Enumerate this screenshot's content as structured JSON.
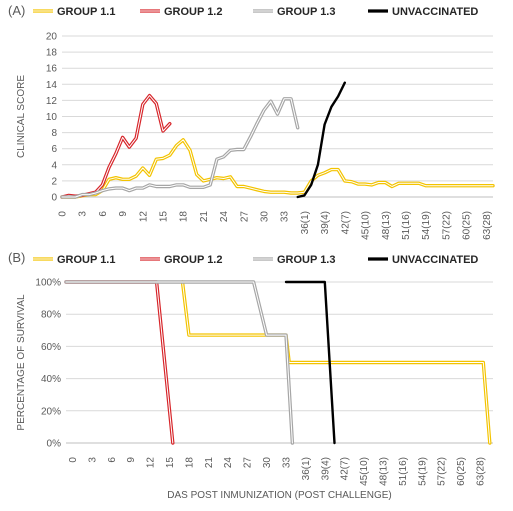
{
  "chart_data": [
    {
      "type": "line",
      "panel_label": "(A)",
      "legend": [
        "GROUP 1.1",
        "GROUP 1.2",
        "GROUP 1.3",
        "UNVACCINATED"
      ],
      "legend_position": "top",
      "colors": [
        "#F3C300",
        "#D7262B",
        "#A6A6A6",
        "#000000"
      ],
      "ylabel": "CLINICAL SCORE",
      "xlabel": "",
      "ylim": [
        0,
        20
      ],
      "yticks": [
        0,
        2,
        4,
        6,
        8,
        10,
        12,
        14,
        16,
        18,
        20
      ],
      "xlim": [
        0,
        64
      ],
      "xtick_values": [
        0,
        3,
        6,
        9,
        12,
        15,
        18,
        21,
        24,
        27,
        30,
        33,
        36,
        39,
        42,
        45,
        48,
        51,
        54,
        57,
        60,
        63
      ],
      "xtick_labels": [
        "0",
        "3",
        "6",
        "9",
        "12",
        "15",
        "18",
        "21",
        "24",
        "27",
        "30",
        "33",
        "36(1)",
        "39(4)",
        "42(7)",
        "45(10)",
        "48(13)",
        "51(16)",
        "54(19)",
        "57(22)",
        "60(25)",
        "63(28)"
      ],
      "grid": true,
      "series": [
        {
          "name": "GROUP 1.1",
          "x": [
            0,
            2,
            4,
            5,
            6,
            7,
            8,
            9,
            10,
            11,
            12,
            13,
            14,
            15,
            16,
            17,
            18,
            19,
            20,
            21,
            22,
            23,
            24,
            25,
            26,
            27,
            28,
            29,
            30,
            31,
            32,
            33,
            34,
            35,
            36,
            37,
            38,
            39,
            40,
            41,
            42,
            43,
            44,
            45,
            46,
            47,
            48,
            49,
            50,
            51,
            52,
            53,
            54,
            55,
            56,
            57,
            58,
            59,
            60,
            61,
            62,
            63,
            64
          ],
          "y": [
            0,
            0,
            0.3,
            0.3,
            0.8,
            2.2,
            2.4,
            2.2,
            2.2,
            2.6,
            3.6,
            2.7,
            4.7,
            4.8,
            5.2,
            6.4,
            7.1,
            5.8,
            2.8,
            2.0,
            2.2,
            2.4,
            2.3,
            2.5,
            1.3,
            1.3,
            1.1,
            0.9,
            0.7,
            0.6,
            0.6,
            0.6,
            0.5,
            0.5,
            0.6,
            2.0,
            2.7,
            3.0,
            3.4,
            3.4,
            2.0,
            1.9,
            1.6,
            1.6,
            1.5,
            1.8,
            1.8,
            1.3,
            1.7,
            1.7,
            1.7,
            1.7,
            1.4,
            1.4,
            1.4,
            1.4,
            1.4,
            1.4,
            1.4,
            1.4,
            1.4,
            1.4,
            1.4
          ]
        },
        {
          "name": "GROUP 1.2",
          "x": [
            0,
            1,
            2,
            3,
            4,
            5,
            6,
            7,
            8,
            9,
            10,
            11,
            12,
            13,
            14,
            15,
            16
          ],
          "y": [
            0,
            0.2,
            0.1,
            0.2,
            0.4,
            0.6,
            1.5,
            3.7,
            5.4,
            7.4,
            6.2,
            7.3,
            11.5,
            12.6,
            11.6,
            8.2,
            9.1
          ]
        },
        {
          "name": "GROUP 1.3",
          "x": [
            0,
            2,
            3,
            4,
            5,
            6,
            7,
            8,
            9,
            10,
            11,
            12,
            13,
            14,
            15,
            16,
            17,
            18,
            19,
            20,
            21,
            22,
            23,
            24,
            25,
            26,
            27,
            28,
            29,
            30,
            31,
            32,
            33,
            34,
            35
          ],
          "y": [
            0,
            0,
            0.3,
            0.3,
            0.5,
            0.8,
            1.0,
            1.1,
            1.1,
            0.8,
            1.1,
            1.1,
            1.5,
            1.3,
            1.3,
            1.3,
            1.5,
            1.5,
            1.2,
            1.2,
            1.2,
            1.5,
            4.7,
            5.0,
            5.8,
            5.9,
            5.9,
            7.5,
            9.2,
            10.8,
            11.9,
            10.3,
            12.2,
            12.2,
            8.6
          ]
        },
        {
          "name": "UNVACCINATED",
          "x": [
            35,
            36,
            37,
            38,
            39,
            40,
            41,
            42
          ],
          "y": [
            0,
            0.2,
            1.5,
            4.0,
            9.0,
            11.2,
            12.5,
            14.2
          ]
        }
      ]
    },
    {
      "type": "line",
      "panel_label": "(B)",
      "legend": [
        "GROUP 1.1",
        "GROUP 1.2",
        "GROUP 1.3",
        "UNVACCINATED"
      ],
      "legend_position": "top",
      "colors": [
        "#F3C300",
        "#D7262B",
        "#A6A6A6",
        "#000000"
      ],
      "ylabel": "PERCENTAGE OF SURVIVAL",
      "xlabel": "DAS POST INMUNIZATION (POST CHALLENGE)",
      "ylim": [
        0,
        100
      ],
      "yticks": [
        0,
        20,
        40,
        60,
        80,
        100
      ],
      "ytick_labels": [
        "0%",
        "20%",
        "40%",
        "60%",
        "80%",
        "100%"
      ],
      "xlim": [
        -1,
        65
      ],
      "xtick_values": [
        0,
        3,
        6,
        9,
        12,
        15,
        18,
        21,
        24,
        27,
        30,
        33,
        36,
        39,
        42,
        45,
        48,
        51,
        54,
        57,
        60,
        63
      ],
      "xtick_labels": [
        "0",
        "3",
        "6",
        "9",
        "12",
        "15",
        "18",
        "21",
        "24",
        "27",
        "30",
        "33",
        "36(1)",
        "39(4)",
        "42(7)",
        "45(10)",
        "48(13)",
        "51(16)",
        "54(19)",
        "57(22)",
        "60(25)",
        "63(28)"
      ],
      "grid": true,
      "series": [
        {
          "name": "GROUP 1.1",
          "x": [
            17,
            18,
            33,
            33.5,
            63.5,
            64.5
          ],
          "y": [
            100,
            67,
            67,
            50,
            50,
            0
          ]
        },
        {
          "name": "GROUP 1.2",
          "x": [
            -1,
            13,
            15.5
          ],
          "y": [
            100,
            100,
            0
          ]
        },
        {
          "name": "GROUP 1.3",
          "x": [
            -1,
            28,
            30,
            33,
            34
          ],
          "y": [
            100,
            100,
            67,
            67,
            0
          ]
        },
        {
          "name": "UNVACCINATED",
          "x": [
            33,
            39,
            40.5
          ],
          "y": [
            100,
            100,
            0
          ]
        }
      ]
    }
  ]
}
